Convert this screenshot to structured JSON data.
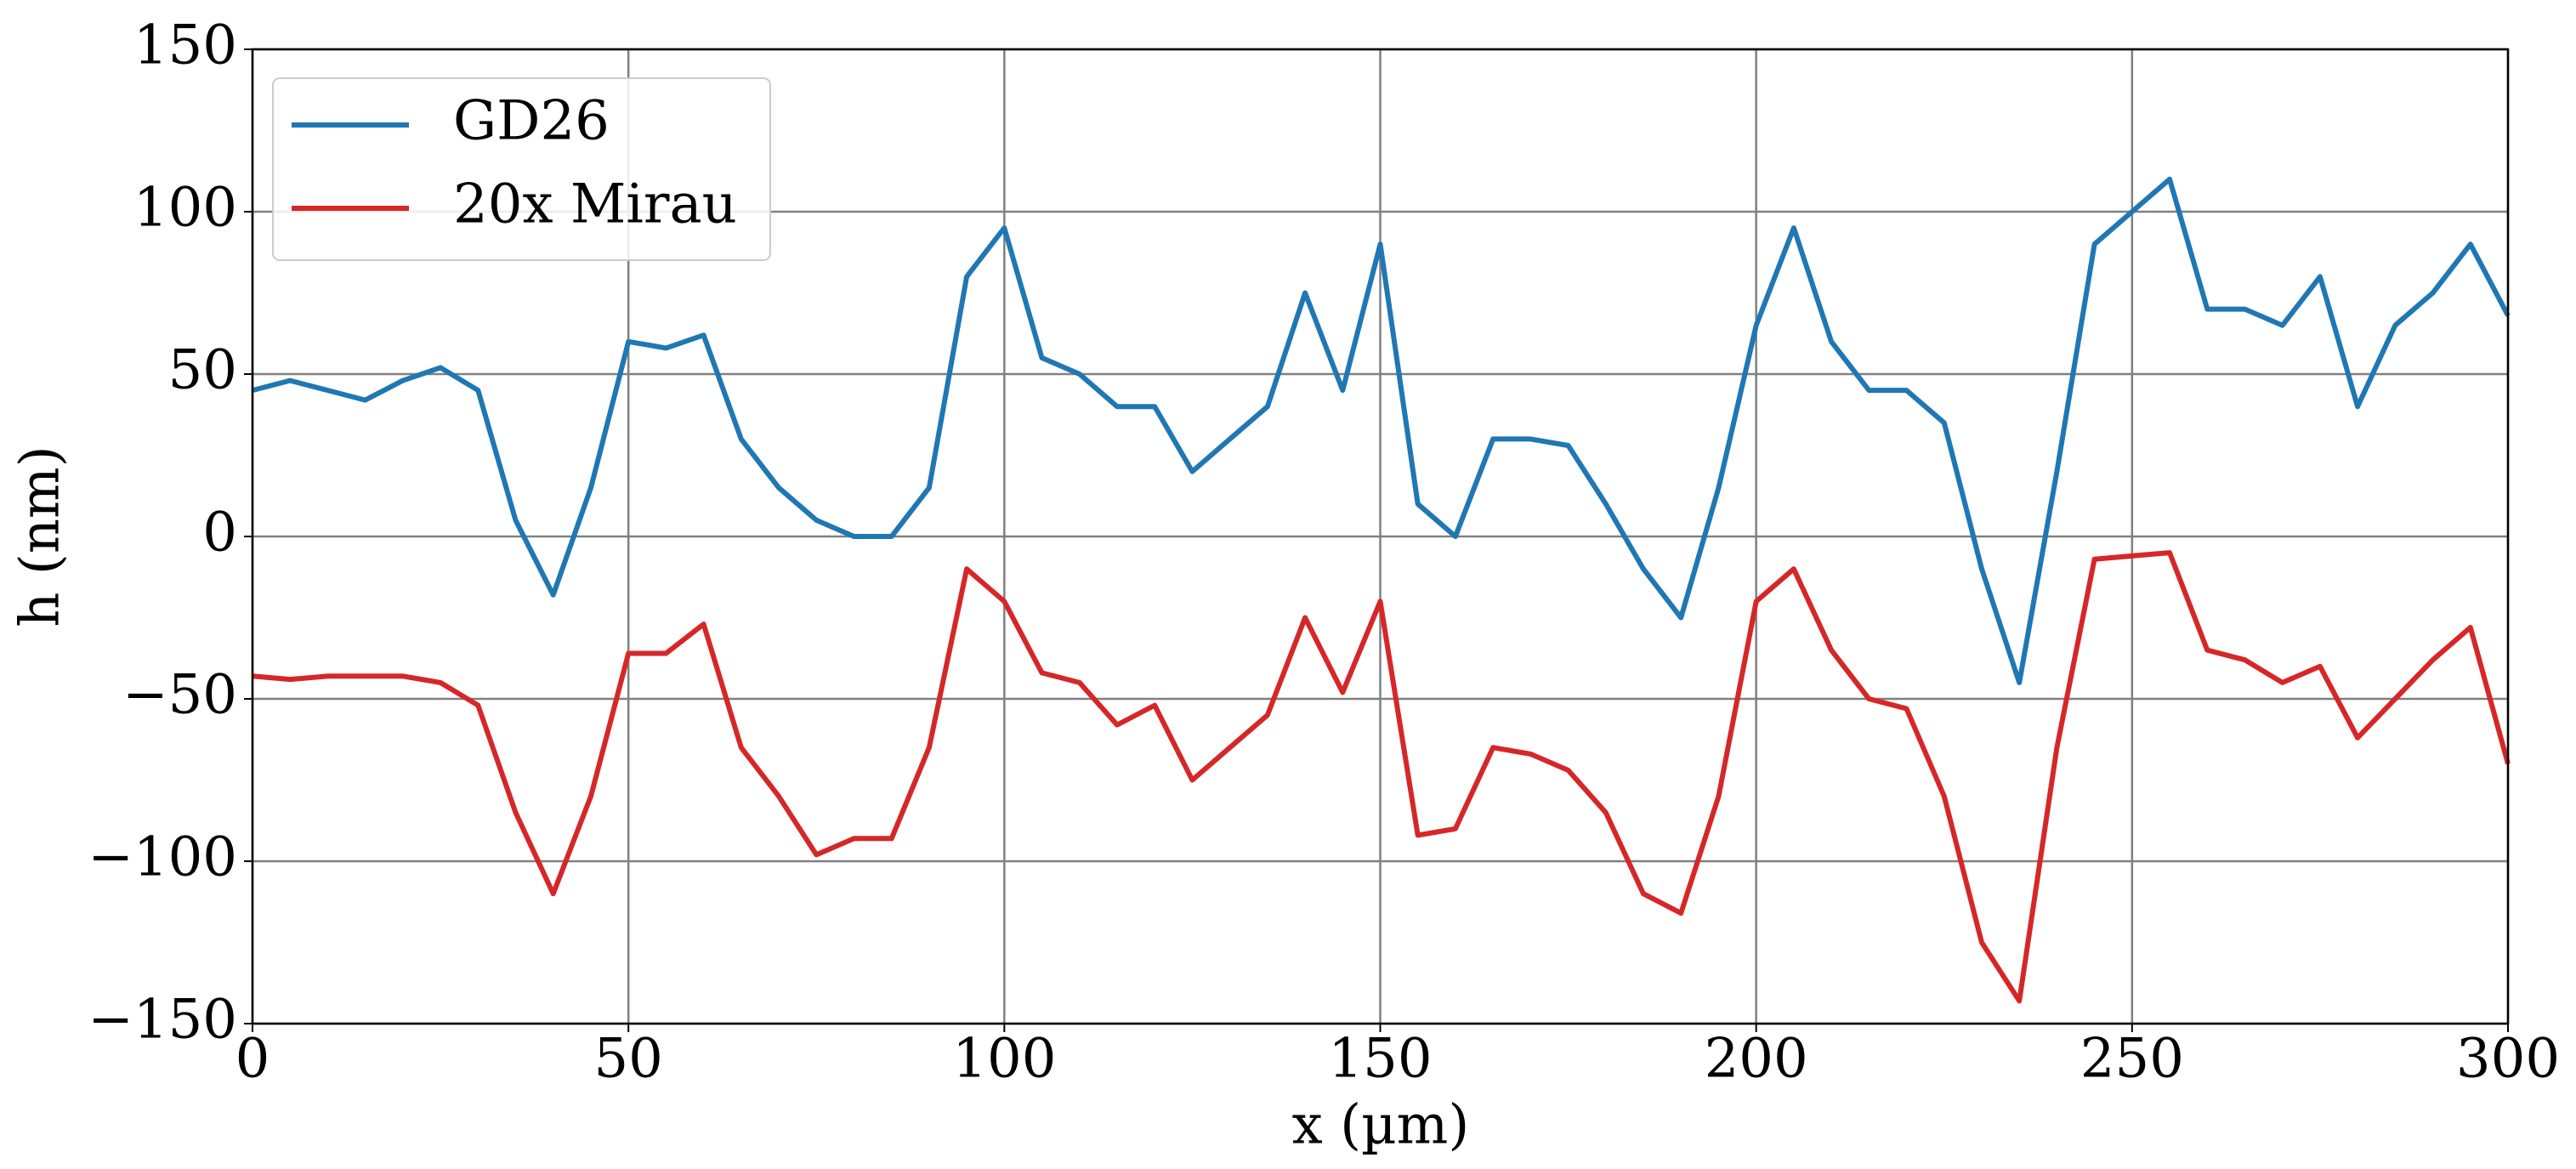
{
  "chart_data": {
    "type": "line",
    "xlabel": "x (µm)",
    "ylabel": "h (nm)",
    "x": [
      0,
      5,
      10,
      15,
      20,
      25,
      30,
      35,
      40,
      45,
      50,
      55,
      60,
      65,
      70,
      75,
      80,
      85,
      90,
      95,
      100,
      105,
      110,
      115,
      120,
      125,
      130,
      135,
      140,
      145,
      150,
      155,
      160,
      165,
      170,
      175,
      180,
      185,
      190,
      195,
      200,
      205,
      210,
      215,
      220,
      225,
      230,
      235,
      240,
      245,
      250,
      255,
      260,
      265,
      270,
      275,
      280,
      285,
      290,
      295,
      300
    ],
    "series": [
      {
        "name": "GD26",
        "color": "#1f77b4",
        "values": [
          45,
          48,
          45,
          42,
          48,
          52,
          45,
          5,
          -18,
          15,
          60,
          58,
          62,
          30,
          15,
          5,
          0,
          0,
          15,
          80,
          95,
          55,
          50,
          40,
          40,
          20,
          30,
          40,
          75,
          45,
          90,
          10,
          0,
          30,
          30,
          28,
          10,
          -10,
          -25,
          15,
          65,
          95,
          60,
          45,
          45,
          35,
          -10,
          -45,
          20,
          90,
          100,
          110,
          70,
          70,
          65,
          80,
          40,
          65,
          75,
          90,
          68
        ]
      },
      {
        "name": "20x Mirau",
        "color": "#d62728",
        "values": [
          -43,
          -44,
          -43,
          -43,
          -43,
          -45,
          -52,
          -85,
          -110,
          -80,
          -36,
          -36,
          -27,
          -65,
          -80,
          -98,
          -93,
          -93,
          -65,
          -10,
          -20,
          -42,
          -45,
          -58,
          -52,
          -75,
          -65,
          -55,
          -25,
          -48,
          -20,
          -92,
          -90,
          -65,
          -67,
          -72,
          -85,
          -110,
          -116,
          -80,
          -20,
          -10,
          -35,
          -50,
          -53,
          -80,
          -125,
          -143,
          -65,
          -7,
          -6,
          -5,
          -35,
          -38,
          -45,
          -40,
          -62,
          -50,
          -38,
          -28,
          -70
        ]
      }
    ],
    "xlim": [
      0,
      300
    ],
    "xticks": [
      0,
      50,
      100,
      150,
      200,
      250,
      300
    ],
    "ylim": [
      -150,
      150
    ],
    "yticks": [
      {
        "value": -150,
        "label": "−150"
      },
      {
        "value": -100,
        "label": "−100"
      },
      {
        "value": -50,
        "label": "−50"
      },
      0,
      50,
      100,
      150
    ],
    "grid": true,
    "legend": "upper left"
  }
}
